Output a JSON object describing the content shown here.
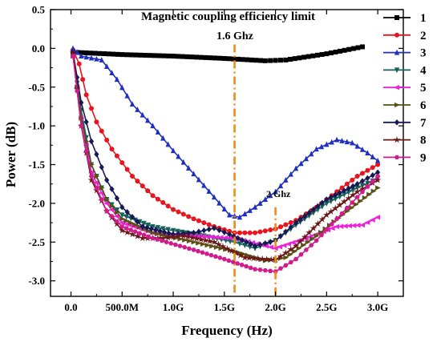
{
  "chart_data": {
    "type": "line",
    "title": "",
    "xlabel": "Frequency (Hz)",
    "ylabel": "Power (dB)",
    "xlim": [
      -0.2,
      3.25
    ],
    "ylim": [
      -3.2,
      0.5
    ],
    "x_ticks": [
      {
        "v": 0.0,
        "label": "0.0"
      },
      {
        "v": 0.5,
        "label": "500.0M"
      },
      {
        "v": 1.0,
        "label": "1.0G"
      },
      {
        "v": 1.5,
        "label": "1.5G"
      },
      {
        "v": 2.0,
        "label": "2.0G"
      },
      {
        "v": 2.5,
        "label": "2.5G"
      },
      {
        "v": 3.0,
        "label": "3.0G"
      }
    ],
    "y_ticks": [
      {
        "v": 0.5,
        "label": "0.5"
      },
      {
        "v": 0.0,
        "label": "0.0"
      },
      {
        "v": -0.5,
        "label": "-0.5"
      },
      {
        "v": -1.0,
        "label": "-1.0"
      },
      {
        "v": -1.5,
        "label": "-1.5"
      },
      {
        "v": -2.0,
        "label": "-2.0"
      },
      {
        "v": -2.5,
        "label": "-2.5"
      },
      {
        "v": -3.0,
        "label": "-3.0"
      }
    ],
    "grid": false,
    "legend_position": "right",
    "series": [
      {
        "name": "1",
        "color": "#000000",
        "marker": "square",
        "points": [
          [
            0.02,
            -0.05
          ],
          [
            0.5,
            -0.08
          ],
          [
            1.0,
            -0.1
          ],
          [
            1.5,
            -0.13
          ],
          [
            1.9,
            -0.16
          ],
          [
            2.1,
            -0.15
          ],
          [
            2.5,
            -0.07
          ],
          [
            2.85,
            0.02
          ]
        ]
      },
      {
        "name": "2",
        "color": "#e8141e",
        "marker": "circle",
        "points": [
          [
            0.02,
            -0.02
          ],
          [
            0.08,
            -0.2
          ],
          [
            0.15,
            -0.6
          ],
          [
            0.25,
            -0.95
          ],
          [
            0.4,
            -1.3
          ],
          [
            0.6,
            -1.65
          ],
          [
            0.8,
            -1.9
          ],
          [
            1.0,
            -2.08
          ],
          [
            1.2,
            -2.2
          ],
          [
            1.4,
            -2.3
          ],
          [
            1.6,
            -2.38
          ],
          [
            1.8,
            -2.38
          ],
          [
            2.0,
            -2.33
          ],
          [
            2.2,
            -2.22
          ],
          [
            2.4,
            -2.05
          ],
          [
            2.6,
            -1.85
          ],
          [
            2.8,
            -1.65
          ],
          [
            3.0,
            -1.5
          ]
        ]
      },
      {
        "name": "3",
        "color": "#1f2fbf",
        "marker": "triangle",
        "points": [
          [
            0.02,
            0.0
          ],
          [
            0.1,
            -0.1
          ],
          [
            0.3,
            -0.15
          ],
          [
            0.45,
            -0.4
          ],
          [
            0.6,
            -0.72
          ],
          [
            0.8,
            -1.0
          ],
          [
            1.0,
            -1.32
          ],
          [
            1.2,
            -1.62
          ],
          [
            1.4,
            -1.92
          ],
          [
            1.55,
            -2.15
          ],
          [
            1.65,
            -2.18
          ],
          [
            1.8,
            -2.05
          ],
          [
            2.0,
            -1.85
          ],
          [
            2.2,
            -1.55
          ],
          [
            2.4,
            -1.3
          ],
          [
            2.6,
            -1.18
          ],
          [
            2.75,
            -1.22
          ],
          [
            2.9,
            -1.35
          ],
          [
            3.0,
            -1.45
          ]
        ]
      },
      {
        "name": "4",
        "color": "#16615a",
        "marker": "tri-down",
        "points": [
          [
            0.02,
            -0.1
          ],
          [
            0.1,
            -0.8
          ],
          [
            0.2,
            -1.5
          ],
          [
            0.35,
            -1.95
          ],
          [
            0.5,
            -2.15
          ],
          [
            0.8,
            -2.3
          ],
          [
            1.0,
            -2.35
          ],
          [
            1.3,
            -2.42
          ],
          [
            1.6,
            -2.5
          ],
          [
            1.8,
            -2.58
          ],
          [
            2.0,
            -2.48
          ],
          [
            2.2,
            -2.28
          ],
          [
            2.5,
            -2.0
          ],
          [
            2.8,
            -1.8
          ],
          [
            3.0,
            -1.68
          ]
        ]
      },
      {
        "name": "5",
        "color": "#ee20dc",
        "marker": "tri-left",
        "points": [
          [
            0.02,
            -0.1
          ],
          [
            0.1,
            -0.9
          ],
          [
            0.2,
            -1.6
          ],
          [
            0.35,
            -2.0
          ],
          [
            0.5,
            -2.25
          ],
          [
            0.8,
            -2.38
          ],
          [
            1.2,
            -2.42
          ],
          [
            1.6,
            -2.45
          ],
          [
            2.0,
            -2.58
          ],
          [
            2.3,
            -2.45
          ],
          [
            2.6,
            -2.3
          ],
          [
            2.85,
            -2.28
          ],
          [
            3.0,
            -2.18
          ]
        ]
      },
      {
        "name": "6",
        "color": "#5a5015",
        "marker": "tri-right",
        "points": [
          [
            0.02,
            -0.1
          ],
          [
            0.1,
            -0.9
          ],
          [
            0.2,
            -1.5
          ],
          [
            0.35,
            -1.95
          ],
          [
            0.5,
            -2.2
          ],
          [
            0.8,
            -2.38
          ],
          [
            1.2,
            -2.5
          ],
          [
            1.6,
            -2.62
          ],
          [
            1.9,
            -2.74
          ],
          [
            2.1,
            -2.7
          ],
          [
            2.4,
            -2.42
          ],
          [
            2.7,
            -2.1
          ],
          [
            3.0,
            -1.8
          ]
        ]
      },
      {
        "name": "7",
        "color": "#161a52",
        "marker": "diamond",
        "points": [
          [
            0.02,
            -0.05
          ],
          [
            0.1,
            -0.7
          ],
          [
            0.2,
            -1.2
          ],
          [
            0.35,
            -1.7
          ],
          [
            0.5,
            -2.05
          ],
          [
            0.7,
            -2.3
          ],
          [
            1.0,
            -2.4
          ],
          [
            1.2,
            -2.38
          ],
          [
            1.4,
            -2.32
          ],
          [
            1.55,
            -2.4
          ],
          [
            1.8,
            -2.55
          ],
          [
            2.0,
            -2.48
          ],
          [
            2.2,
            -2.25
          ],
          [
            2.5,
            -1.95
          ],
          [
            2.8,
            -1.75
          ],
          [
            3.0,
            -1.6
          ]
        ]
      },
      {
        "name": "8",
        "color": "#6a1818",
        "marker": "star",
        "points": [
          [
            0.02,
            -0.05
          ],
          [
            0.1,
            -1.0
          ],
          [
            0.2,
            -1.7
          ],
          [
            0.35,
            -2.1
          ],
          [
            0.5,
            -2.35
          ],
          [
            0.7,
            -2.45
          ],
          [
            0.9,
            -2.45
          ],
          [
            1.1,
            -2.42
          ],
          [
            1.4,
            -2.5
          ],
          [
            1.7,
            -2.7
          ],
          [
            2.0,
            -2.73
          ],
          [
            2.2,
            -2.55
          ],
          [
            2.5,
            -2.15
          ],
          [
            2.8,
            -1.85
          ],
          [
            3.0,
            -1.7
          ]
        ]
      },
      {
        "name": "9",
        "color": "#d21a8c",
        "marker": "hex",
        "points": [
          [
            0.02,
            -0.1
          ],
          [
            0.1,
            -1.0
          ],
          [
            0.2,
            -1.65
          ],
          [
            0.35,
            -2.1
          ],
          [
            0.5,
            -2.3
          ],
          [
            0.8,
            -2.45
          ],
          [
            1.2,
            -2.6
          ],
          [
            1.5,
            -2.72
          ],
          [
            1.8,
            -2.85
          ],
          [
            2.0,
            -2.88
          ],
          [
            2.2,
            -2.72
          ],
          [
            2.4,
            -2.48
          ],
          [
            2.6,
            -2.2
          ],
          [
            2.8,
            -1.92
          ],
          [
            3.0,
            -1.65
          ]
        ]
      }
    ],
    "vlines": [
      {
        "x": 1.6,
        "y_top": 0.05,
        "label": "1.6 Ghz",
        "color": "#f08a18"
      },
      {
        "x": 2.0,
        "y_top": -2.05,
        "label": "2 Ghz",
        "color": "#f08a18"
      }
    ],
    "annotations": [
      {
        "text": "Magnetic coupling efficiency limit"
      }
    ]
  }
}
